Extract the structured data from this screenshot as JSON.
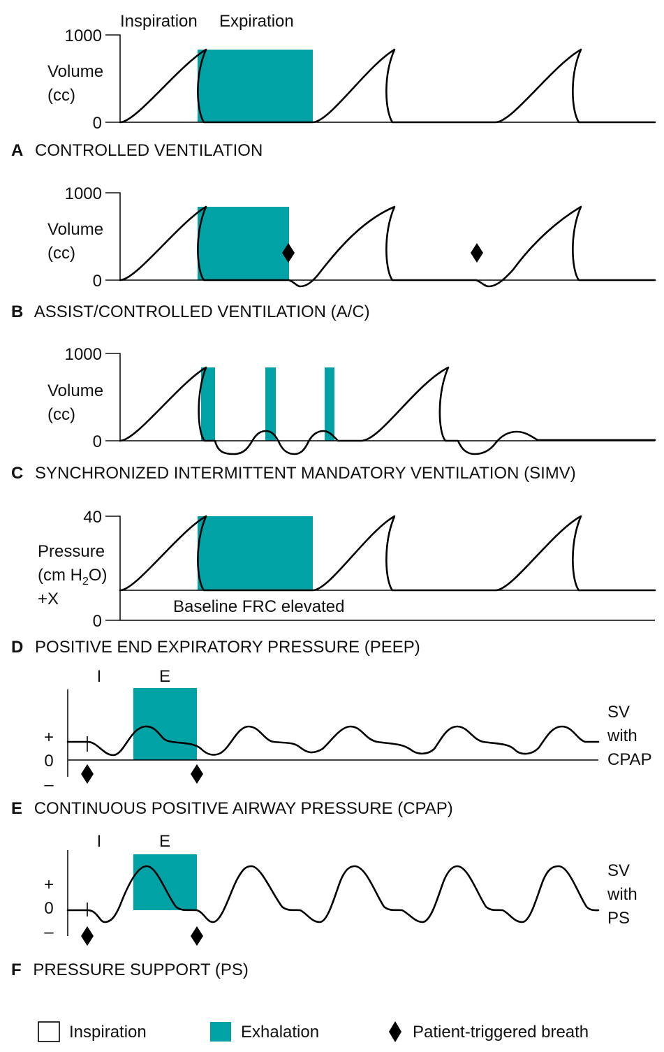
{
  "colors": {
    "exhalation": "#00a2a5",
    "line": "#000000"
  },
  "panels": {
    "a": {
      "letter": "A",
      "title": "CONTROLLED VENTILATION",
      "ylabel_1": "Volume",
      "ylabel_2": "(cc)",
      "tick_top": "1000",
      "tick_zero": "0",
      "phase_inspiration": "Inspiration",
      "phase_expiration": "Expiration"
    },
    "b": {
      "letter": "B",
      "title": "ASSIST/CONTROLLED VENTILATION (A/C)",
      "ylabel_1": "Volume",
      "ylabel_2": "(cc)",
      "tick_top": "1000",
      "tick_zero": "0"
    },
    "c": {
      "letter": "C",
      "title": "SYNCHRONIZED INTERMITTENT MANDATORY VENTILATION (SIMV)",
      "ylabel_1": "Volume",
      "ylabel_2": "(cc)",
      "tick_top": "1000",
      "tick_zero": "0"
    },
    "d": {
      "letter": "D",
      "title": "POSITIVE END EXPIRATORY PRESSURE (PEEP)",
      "ylabel_1": "Pressure",
      "ylabel_2_pre": "(cm H",
      "ylabel_2_sub": "2",
      "ylabel_2_post": "O)",
      "ylabel_3": "+X",
      "tick_top": "40",
      "tick_zero": "0",
      "baseline_note": "Baseline FRC elevated"
    },
    "e": {
      "letter": "E",
      "title": "CONTINUOUS POSITIVE AIRWAY PRESSURE (CPAP)",
      "phase_i": "I",
      "phase_e": "E",
      "tick_plus": "+",
      "tick_zero": "0",
      "tick_minus": "–",
      "side_1": "SV",
      "side_2": "with",
      "side_3": "CPAP"
    },
    "f": {
      "letter": "F",
      "title": "PRESSURE SUPPORT (PS)",
      "phase_i": "I",
      "phase_e": "E",
      "tick_plus": "+",
      "tick_zero": "0",
      "tick_minus": "–",
      "side_1": "SV",
      "side_2": "with",
      "side_3": "PS"
    }
  },
  "legend": {
    "inspiration": "Inspiration",
    "exhalation": "Exhalation",
    "patient_triggered": "Patient-triggered breath"
  }
}
